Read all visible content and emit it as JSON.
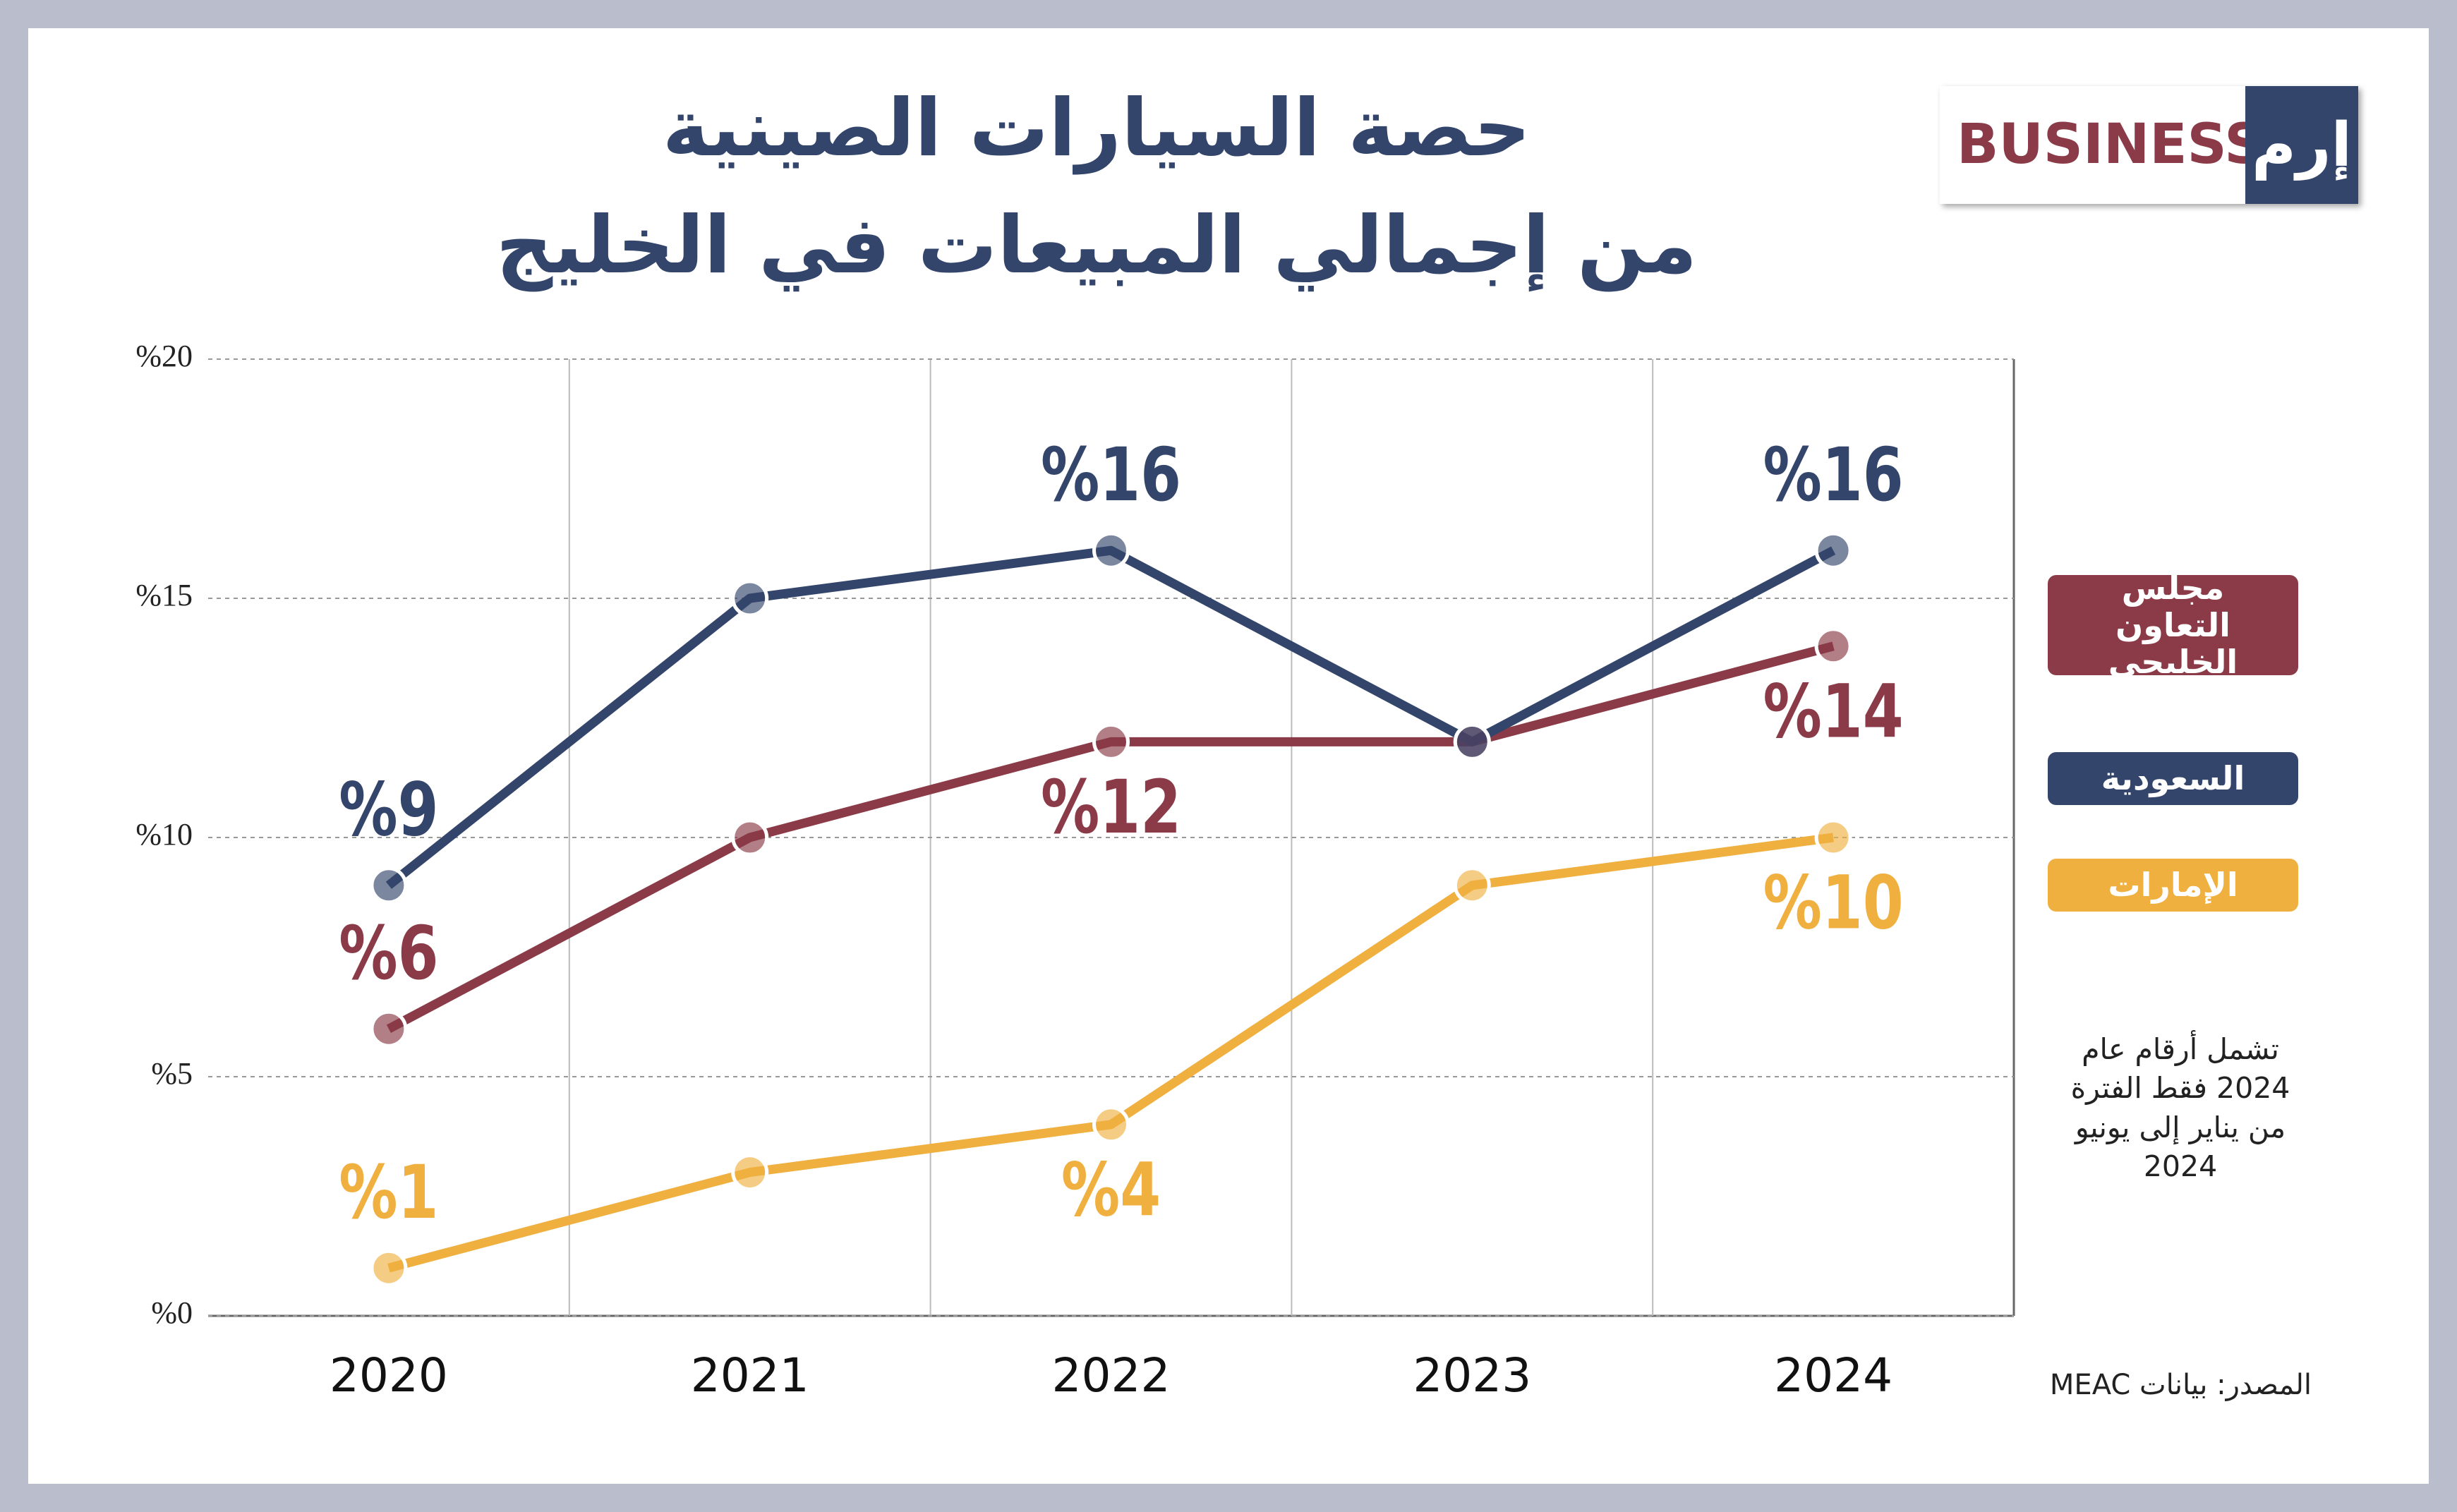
{
  "chart_data": {
    "type": "line",
    "title": "حصة السيارات الصينية",
    "subtitle": "من إجمالي المبيعات في الخليج",
    "logo": {
      "text": "BUSINESS",
      "brand": "إرم"
    },
    "categories": [
      "2020",
      "2021",
      "2022",
      "2023",
      "2024"
    ],
    "series": [
      {
        "name": "مجلس التعاون الخليجي",
        "color": "#8b3a47",
        "values": [
          6,
          10,
          12,
          12,
          14
        ],
        "value_labels": [
          "%6",
          null,
          "%12",
          null,
          "%14"
        ]
      },
      {
        "name": "السعودية",
        "color": "#34456b",
        "values": [
          9,
          15,
          16,
          12,
          16
        ],
        "value_labels": [
          "%9",
          null,
          "%16",
          null,
          "%16"
        ]
      },
      {
        "name": "الإمارات",
        "color": "#f0b040",
        "values": [
          1,
          3,
          4,
          9,
          10
        ],
        "value_labels": [
          "%1",
          null,
          "%4",
          null,
          "%10"
        ]
      }
    ],
    "ylim": [
      0,
      20
    ],
    "yticks": [
      {
        "value": 0,
        "label": "%0"
      },
      {
        "value": 5,
        "label": "%5"
      },
      {
        "value": 10,
        "label": "%10"
      },
      {
        "value": 15,
        "label": "%15"
      },
      {
        "value": 20,
        "label": "%20"
      }
    ],
    "grid": true,
    "note": "تشمل أرقام عام 2024 فقط الفترة من يناير إلى يونيو 2024",
    "source": "المصدر: بيانات MEAC"
  }
}
